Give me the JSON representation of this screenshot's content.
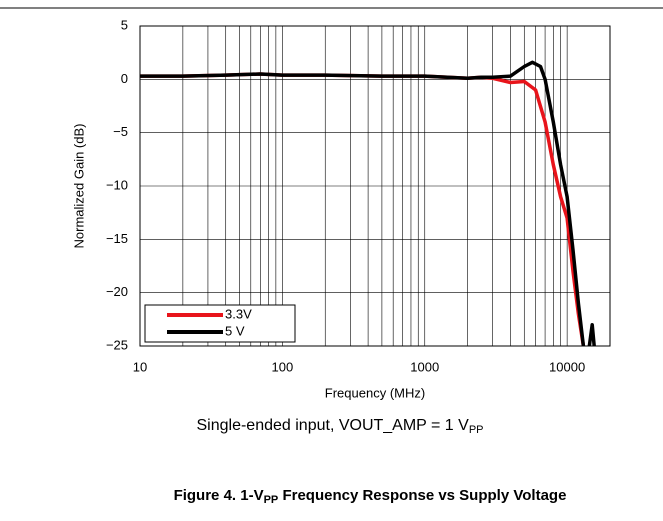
{
  "chart_data": {
    "type": "line",
    "subtitle": [
      "Single-ended input, VOUT_AMP = 1 V",
      "PP"
    ],
    "caption": [
      "Figure 4. 1-V",
      "PP",
      " Frequency Response vs Supply Voltage"
    ],
    "x_label": "Frequency (MHz)",
    "y_label": "Normalized Gain (dB)",
    "xscale": "log",
    "xlim": [
      10,
      20000
    ],
    "xticks": [
      10,
      100,
      1000,
      10000
    ],
    "ylim": [
      -25,
      5
    ],
    "yticks": [
      {
        "value": -25,
        "label": "−25"
      },
      {
        "value": -20,
        "label": "−20"
      },
      {
        "value": -15,
        "label": "−15"
      },
      {
        "value": -10,
        "label": "−10"
      },
      {
        "value": -5,
        "label": "−5"
      },
      0,
      5
    ],
    "grid": true,
    "legend": "lower left",
    "series": [
      {
        "name": "3.3V",
        "color": "#e8141b",
        "x": [
          10,
          20,
          40,
          70,
          100,
          200,
          500,
          1000,
          2000,
          2500,
          3000,
          4000,
          5000,
          6000,
          7000,
          8000,
          9000,
          10000,
          11000,
          12000,
          13000
        ],
        "values": [
          0.3,
          0.3,
          0.4,
          0.5,
          0.4,
          0.4,
          0.3,
          0.3,
          0.1,
          0.2,
          0.1,
          -0.3,
          -0.2,
          -1,
          -4,
          -8,
          -11,
          -13,
          -18,
          -22,
          -25
        ]
      },
      {
        "name": "5 V",
        "color": "#000000",
        "x": [
          10,
          20,
          40,
          70,
          100,
          200,
          500,
          1000,
          2000,
          2500,
          3000,
          4000,
          5000,
          5700,
          6500,
          7000,
          8000,
          9000,
          10000,
          11000,
          12000,
          13000,
          14000,
          15000,
          15500
        ],
        "values": [
          0.3,
          0.3,
          0.4,
          0.5,
          0.4,
          0.4,
          0.3,
          0.3,
          0.1,
          0.2,
          0.2,
          0.3,
          1.2,
          1.6,
          1.2,
          0,
          -4,
          -8,
          -11,
          -16,
          -21,
          -25,
          -26,
          -23,
          -25
        ]
      }
    ]
  }
}
